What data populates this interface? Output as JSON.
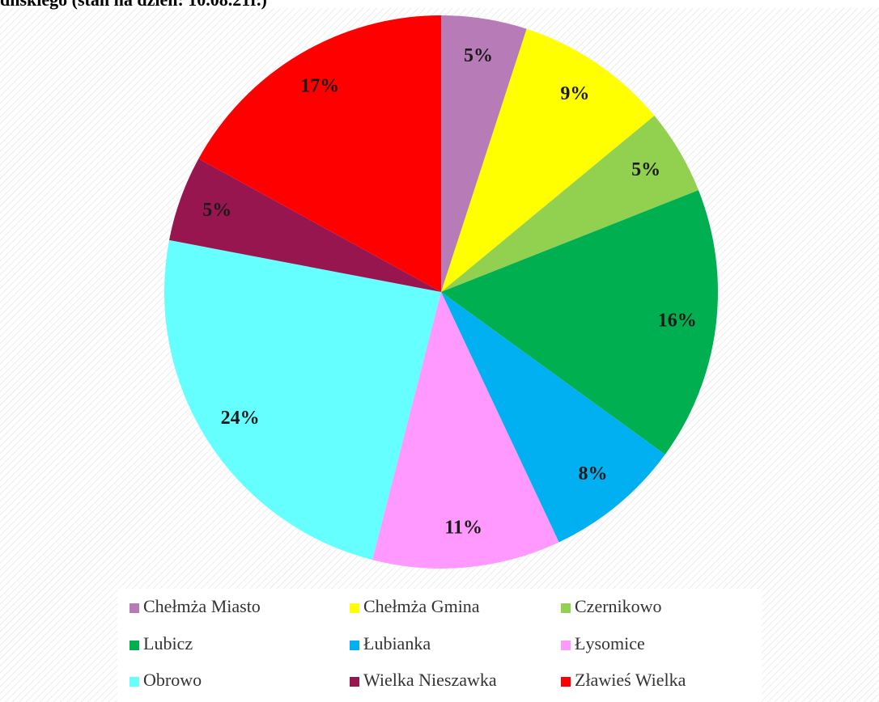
{
  "chart_data": {
    "type": "pie",
    "title": "dnskiego (stan na dzień: 10.08.21r.)",
    "categories": [
      "Chełmża Miasto",
      "Chełmża Gmina",
      "Czernikowo",
      "Lubicz",
      "Łubianka",
      "Łysomice",
      "Obrowo",
      "Wielka Nieszawka",
      "Zławieś Wielka"
    ],
    "values": [
      5,
      9,
      5,
      16,
      8,
      11,
      24,
      5,
      17
    ],
    "value_labels": [
      "5%",
      "9%",
      "5%",
      "16%",
      "8%",
      "11%",
      "24%",
      "5%",
      "17%"
    ],
    "colors": [
      "#b77bb8",
      "#ffff00",
      "#92d050",
      "#00b050",
      "#00b0f0",
      "#ff99ff",
      "#66ffff",
      "#971650",
      "#ff0000"
    ],
    "legend": "bottom"
  }
}
